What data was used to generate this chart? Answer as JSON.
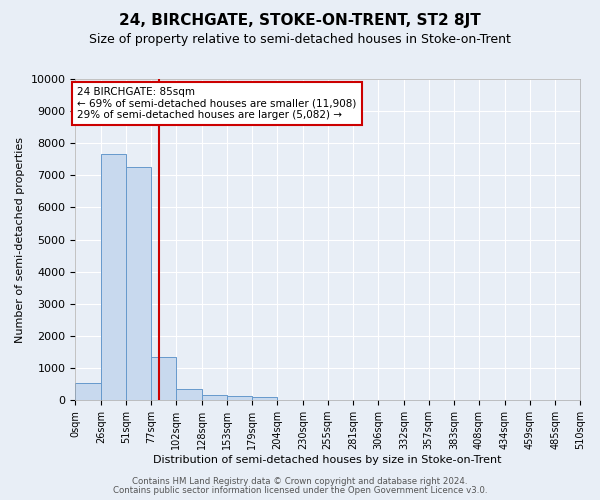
{
  "title": "24, BIRCHGATE, STOKE-ON-TRENT, ST2 8JT",
  "subtitle": "Size of property relative to semi-detached houses in Stoke-on-Trent",
  "xlabel": "Distribution of semi-detached houses by size in Stoke-on-Trent",
  "ylabel": "Number of semi-detached properties",
  "footnote1": "Contains HM Land Registry data © Crown copyright and database right 2024.",
  "footnote2": "Contains public sector information licensed under the Open Government Licence v3.0.",
  "bin_edges": [
    0,
    26,
    51,
    77,
    102,
    128,
    153,
    179,
    204,
    230,
    255,
    281,
    306,
    332,
    357,
    383,
    408,
    434,
    459,
    485,
    510
  ],
  "bin_labels": [
    "0sqm",
    "26sqm",
    "51sqm",
    "77sqm",
    "102sqm",
    "128sqm",
    "153sqm",
    "179sqm",
    "204sqm",
    "230sqm",
    "255sqm",
    "281sqm",
    "306sqm",
    "332sqm",
    "357sqm",
    "383sqm",
    "408sqm",
    "434sqm",
    "459sqm",
    "485sqm",
    "510sqm"
  ],
  "bar_values": [
    530,
    7650,
    7250,
    1350,
    340,
    150,
    130,
    90,
    0,
    0,
    0,
    0,
    0,
    0,
    0,
    0,
    0,
    0,
    0,
    0
  ],
  "bar_color": "#c8d9ee",
  "bar_edge_color": "#6699cc",
  "property_size": 85,
  "vline_color": "#cc0000",
  "annotation_title": "24 BIRCHGATE: 85sqm",
  "annotation_line1": "← 69% of semi-detached houses are smaller (11,908)",
  "annotation_line2": "29% of semi-detached houses are larger (5,082) →",
  "annotation_box_facecolor": "#ffffff",
  "annotation_box_edgecolor": "#cc0000",
  "ylim": [
    0,
    10000
  ],
  "yticks": [
    0,
    1000,
    2000,
    3000,
    4000,
    5000,
    6000,
    7000,
    8000,
    9000,
    10000
  ],
  "background_color": "#e8eef6",
  "grid_color": "#ffffff",
  "title_fontsize": 11,
  "subtitle_fontsize": 9
}
